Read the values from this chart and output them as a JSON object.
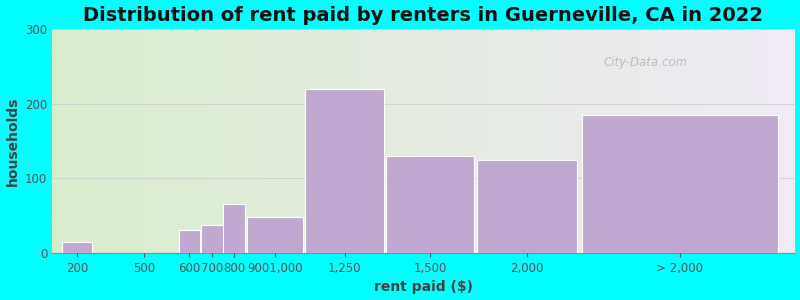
{
  "title": "Distribution of rent paid by renters in Guerneville, CA in 2022",
  "xlabel": "rent paid ($)",
  "ylabel": "households",
  "bar_labels": [
    "200",
    "500",
    "600",
    "700",
    "800",
    "9001,000",
    "1,250",
    "1,500",
    "2,000",
    "> 2,000"
  ],
  "bar_values": [
    15,
    0,
    30,
    37,
    65,
    48,
    220,
    130,
    125,
    185
  ],
  "bar_color": "#C0A8D0",
  "bar_edge_color": "#FFFFFF",
  "background_outer": "#00FFFF",
  "background_inner_left": "#D8EDCC",
  "background_inner_right": "#F0EAF5",
  "ylim": [
    0,
    300
  ],
  "yticks": [
    0,
    100,
    200,
    300
  ],
  "title_fontsize": 14,
  "axis_label_fontsize": 10,
  "tick_fontsize": 8.5,
  "watermark_text": "City-Data.com",
  "bar_lefts": [
    0.0,
    1.6,
    2.6,
    3.1,
    3.6,
    4.1,
    5.4,
    7.2,
    9.2,
    11.5
  ],
  "bar_widths": [
    0.7,
    0.5,
    0.5,
    0.5,
    0.5,
    1.3,
    1.8,
    2.0,
    2.3,
    4.5
  ]
}
